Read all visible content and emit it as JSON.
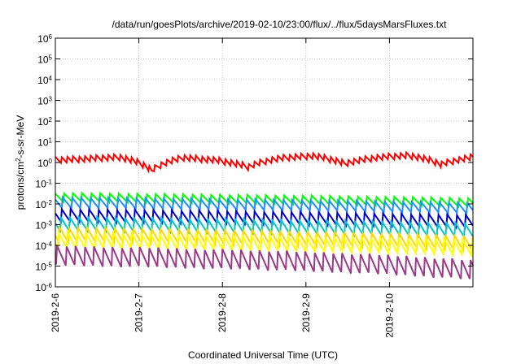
{
  "chart_data": {
    "type": "line",
    "title": "/data/run/goesPlots/archive/2019-02-10/23:00/flux/../flux/5daysMarsFluxes.txt",
    "xlabel": "Coordinated Universal Time (UTC)",
    "ylabel_main": "protons/cm",
    "ylabel_sup": "2",
    "ylabel_tail": "-s-sr-MeV",
    "x_range_days": [
      0,
      5
    ],
    "x_ticks": [
      {
        "day": 0,
        "label": "2019-2-6"
      },
      {
        "day": 1,
        "label": "2019-2-7"
      },
      {
        "day": 2,
        "label": "2019-2-8"
      },
      {
        "day": 3,
        "label": "2019-2-9"
      },
      {
        "day": 4,
        "label": "2019-2-10"
      }
    ],
    "y_log_range": [
      -6,
      6
    ],
    "y_tick_base": "10",
    "y_ticks": [
      {
        "exp": 6,
        "sup": "6"
      },
      {
        "exp": 5,
        "sup": "5"
      },
      {
        "exp": 4,
        "sup": "4"
      },
      {
        "exp": 3,
        "sup": "3"
      },
      {
        "exp": 2,
        "sup": "2"
      },
      {
        "exp": 1,
        "sup": "1"
      },
      {
        "exp": 0,
        "sup": "0"
      },
      {
        "exp": -1,
        "sup": "-1"
      },
      {
        "exp": -2,
        "sup": "-2"
      },
      {
        "exp": -3,
        "sup": "-3"
      },
      {
        "exp": -4,
        "sup": "-4"
      },
      {
        "exp": -5,
        "sup": "-5"
      },
      {
        "exp": -6,
        "sup": "-6"
      }
    ],
    "grid": true,
    "series": [
      {
        "color": "#ff0000",
        "baseline": [
          0.3,
          0.1
        ],
        "peak": [
          1.3,
          1.5,
          1.8,
          0.4,
          1.7,
          1.3,
          0.6,
          1.6,
          2.1,
          0.9,
          1.7,
          2.2,
          0.8,
          1.8
        ],
        "amp": 0.32,
        "period": 0.07
      },
      {
        "color": "#00ff00",
        "baseline": [
          0.035,
          0.02
        ],
        "amp": 0.45,
        "period": 0.11
      },
      {
        "color": "#1e90ff",
        "baseline": [
          0.022,
          0.012
        ],
        "amp": 0.55,
        "period": 0.11
      },
      {
        "color": "#0000cc",
        "baseline": [
          0.006,
          0.003
        ],
        "amp": 0.65,
        "period": 0.11
      },
      {
        "color": "#00c8c8",
        "baseline": [
          0.0025,
          0.0012
        ],
        "amp": 0.7,
        "period": 0.11
      },
      {
        "color": "#ffd700",
        "baseline": [
          0.0008,
          0.0003
        ],
        "amp": 0.75,
        "period": 0.11
      },
      {
        "color": "#ffff00",
        "baseline": [
          0.00045,
          0.0002
        ],
        "amp": 0.8,
        "period": 0.11
      },
      {
        "color": "#9b3a8a",
        "baseline": [
          0.0001,
          2e-05
        ],
        "amp": 1.0,
        "period": 0.11
      }
    ]
  }
}
